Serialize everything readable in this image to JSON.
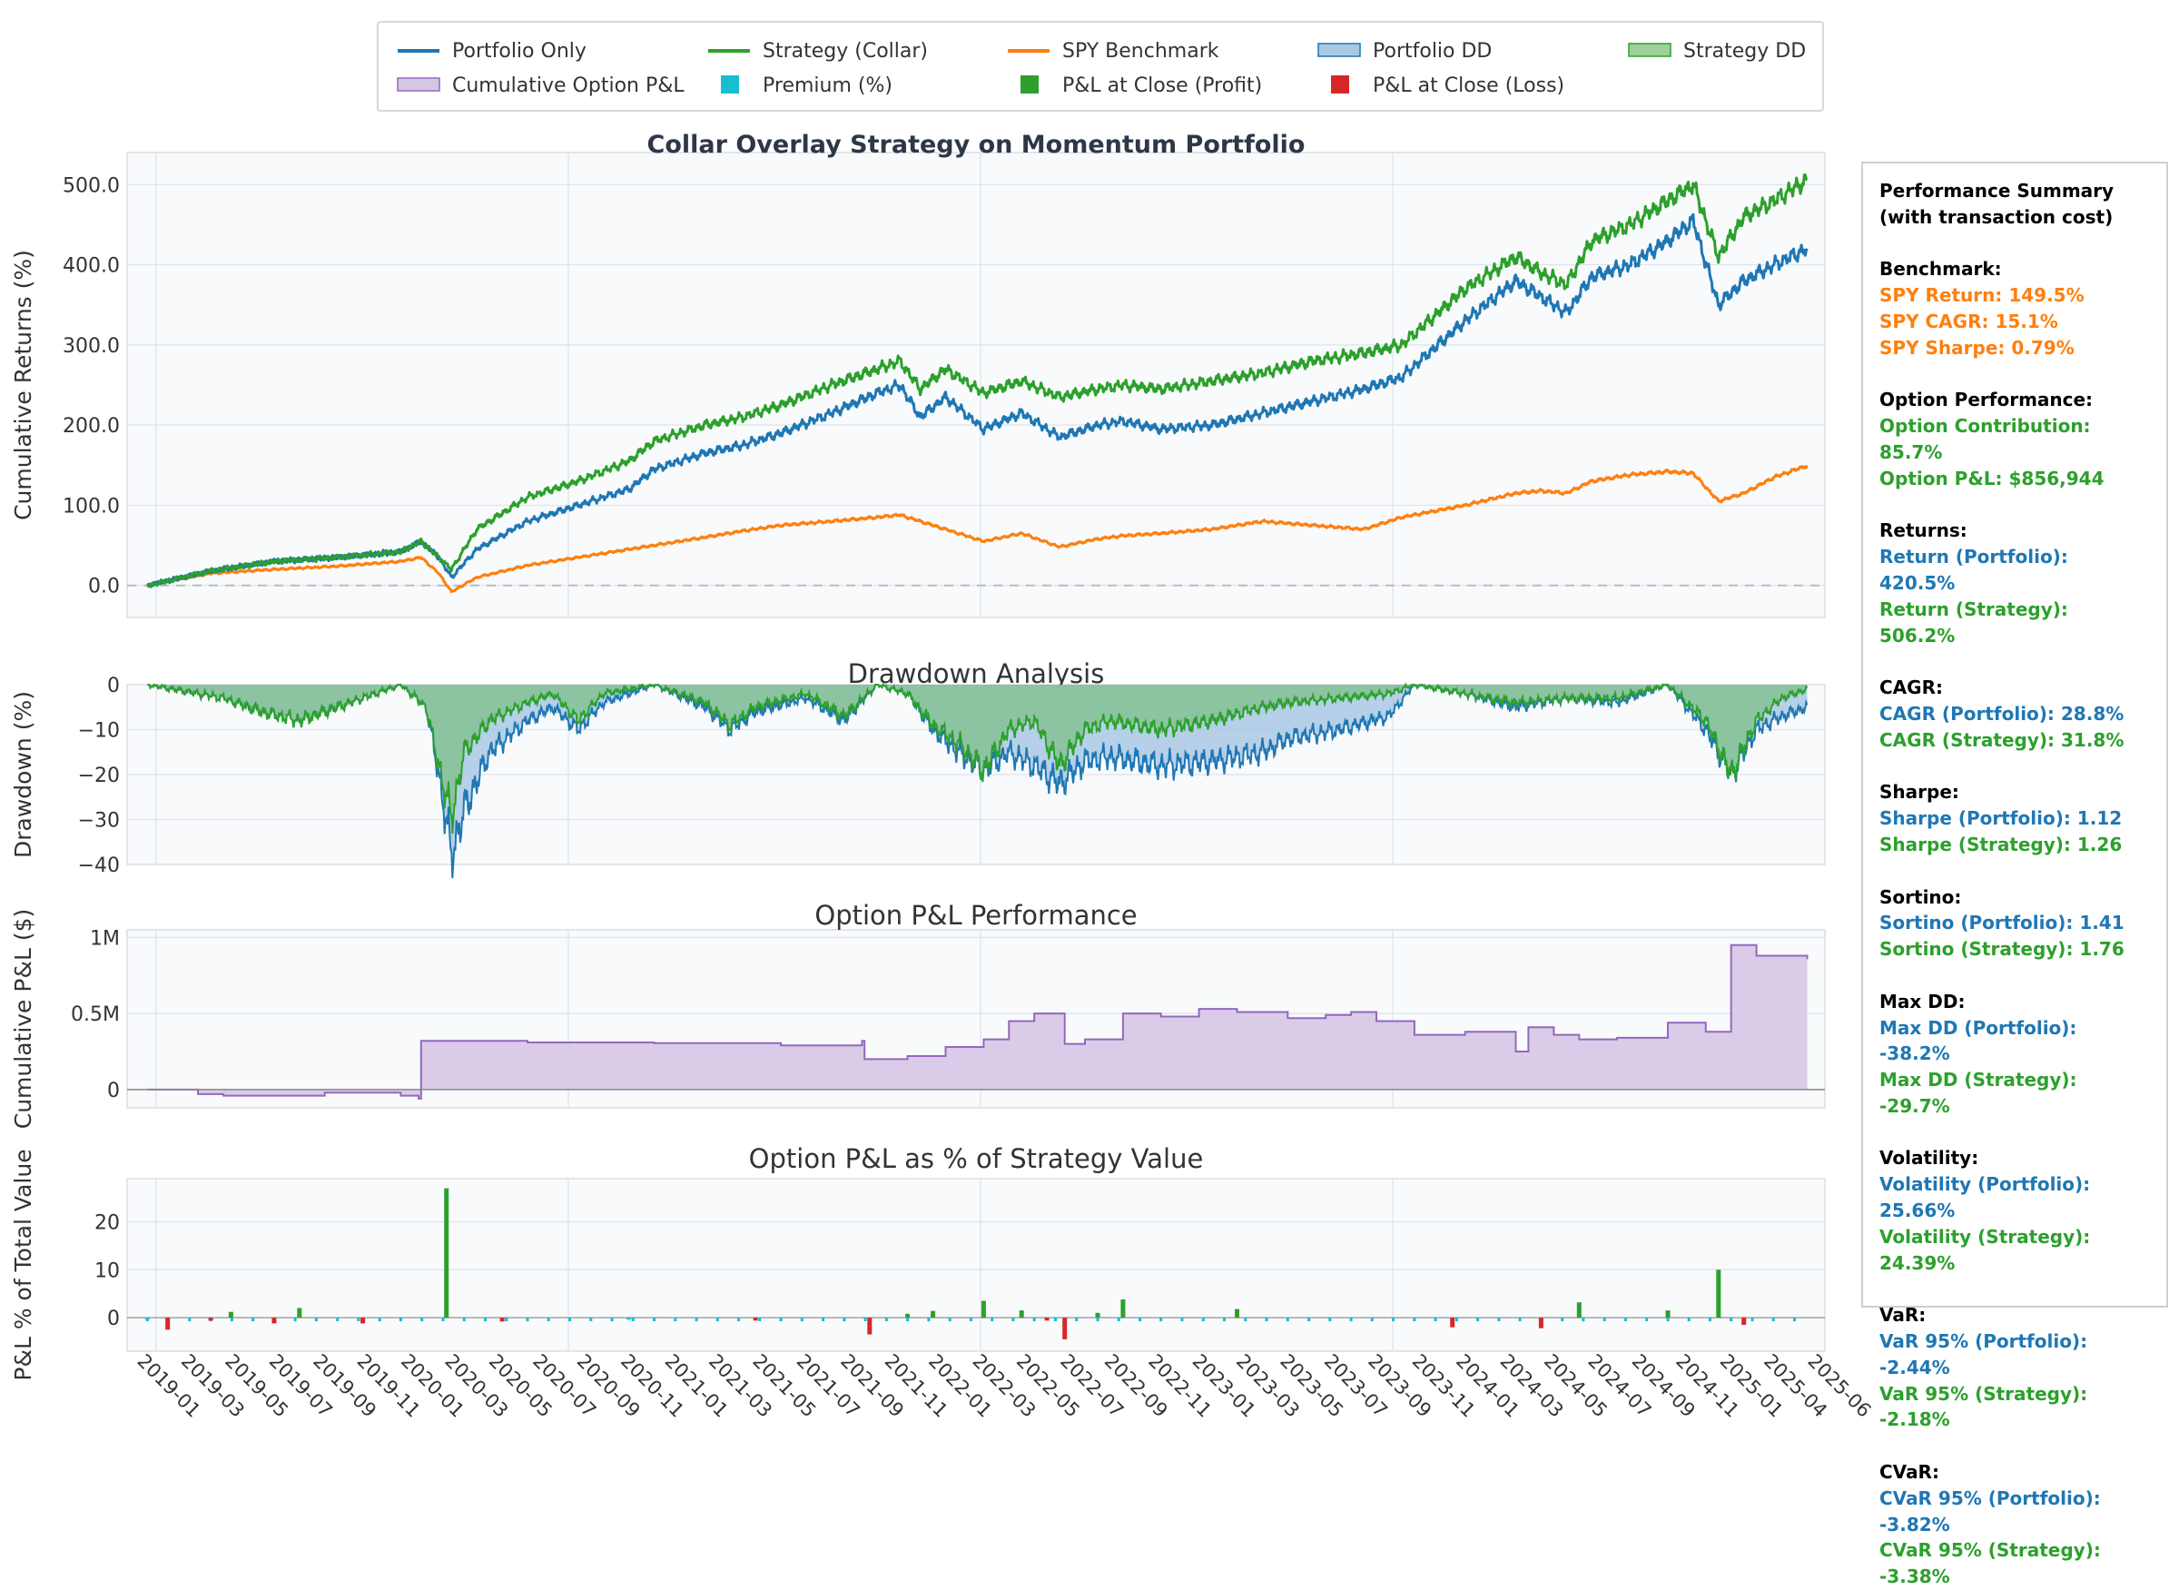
{
  "colors": {
    "portfolio": "#1f77b4",
    "strategy": "#2ca02c",
    "spy": "#ff7f0e",
    "option_pnl": "#9467bd",
    "premium": "#17becf",
    "profit": "#2ca02c",
    "loss": "#d62728",
    "panel_bg": "#f8fafc",
    "grid": "#dde3ea"
  },
  "legend": [
    {
      "label": "Portfolio Only",
      "kind": "line",
      "color": "#1f77b4"
    },
    {
      "label": "Strategy (Collar)",
      "kind": "line",
      "color": "#2ca02c"
    },
    {
      "label": "SPY Benchmark",
      "kind": "line",
      "color": "#ff7f0e"
    },
    {
      "label": "Portfolio DD",
      "kind": "fill",
      "color": "#a9c8e4",
      "edge": "#1f77b4"
    },
    {
      "label": "Strategy DD",
      "kind": "fill",
      "color": "#9ed09a",
      "edge": "#2ca02c"
    },
    {
      "label": "Cumulative Option P&L",
      "kind": "fill",
      "color": "#d6c6e6",
      "edge": "#9467bd"
    },
    {
      "label": "Premium (%)",
      "kind": "square",
      "color": "#17becf"
    },
    {
      "label": "P&L at Close (Profit)",
      "kind": "square",
      "color": "#2ca02c"
    },
    {
      "label": "P&L at Close (Loss)",
      "kind": "square",
      "color": "#d62728"
    }
  ],
  "x_dates": [
    "2019-01",
    "2019-03",
    "2019-05",
    "2019-07",
    "2019-09",
    "2019-11",
    "2020-01",
    "2020-03",
    "2020-05",
    "2020-07",
    "2020-09",
    "2020-11",
    "2021-01",
    "2021-03",
    "2021-05",
    "2021-07",
    "2021-09",
    "2021-11",
    "2022-01",
    "2022-03",
    "2022-05",
    "2022-07",
    "2022-09",
    "2022-11",
    "2023-01",
    "2023-03",
    "2023-05",
    "2023-07",
    "2023-09",
    "2023-11",
    "2024-01",
    "2024-03",
    "2024-05",
    "2024-07",
    "2024-09",
    "2024-11",
    "2025-01",
    "2025-04",
    "2025-06"
  ],
  "chart_data": [
    {
      "type": "line",
      "title": "Collar Overlay Strategy on Momentum Portfolio",
      "xlabel": "",
      "ylabel": "Cumulative Returns (%)",
      "ylim": [
        -40,
        540
      ],
      "yticks": [
        "0.0",
        "100.0",
        "200.0",
        "300.0",
        "400.0",
        "500.0"
      ],
      "time_range": [
        "2018-12",
        "2025-07"
      ],
      "series": [
        {
          "name": "Portfolio Only",
          "color": "#1f77b4",
          "t": [
            2019.0,
            2019.25,
            2019.5,
            2019.75,
            2020.0,
            2020.08,
            2020.15,
            2020.2,
            2020.3,
            2020.5,
            2020.7,
            2020.9,
            2021.0,
            2021.2,
            2021.35,
            2021.5,
            2021.7,
            2021.88,
            2021.97,
            2022.05,
            2022.15,
            2022.3,
            2022.45,
            2022.6,
            2022.75,
            2022.85,
            2023.0,
            2023.2,
            2023.4,
            2023.6,
            2023.8,
            2023.95,
            2024.2,
            2024.4,
            2024.5,
            2024.6,
            2024.7,
            2024.85,
            2025.0,
            2025.1,
            2025.2,
            2025.3,
            2025.42,
            2025.55
          ],
          "v": [
            0,
            18,
            30,
            35,
            42,
            55,
            35,
            10,
            45,
            80,
            100,
            120,
            145,
            165,
            175,
            190,
            215,
            240,
            250,
            210,
            235,
            195,
            215,
            185,
            200,
            205,
            195,
            200,
            215,
            230,
            245,
            260,
            330,
            380,
            360,
            340,
            385,
            400,
            430,
            455,
            350,
            380,
            400,
            420
          ]
        },
        {
          "name": "Strategy (Collar)",
          "color": "#2ca02c",
          "t": [
            2019.0,
            2019.25,
            2019.5,
            2019.75,
            2020.0,
            2020.08,
            2020.15,
            2020.2,
            2020.3,
            2020.5,
            2020.7,
            2020.9,
            2021.0,
            2021.2,
            2021.35,
            2021.5,
            2021.7,
            2021.88,
            2021.97,
            2022.05,
            2022.15,
            2022.3,
            2022.45,
            2022.6,
            2022.75,
            2022.85,
            2023.0,
            2023.2,
            2023.4,
            2023.6,
            2023.8,
            2023.95,
            2024.2,
            2024.4,
            2024.5,
            2024.6,
            2024.7,
            2024.85,
            2025.0,
            2025.1,
            2025.2,
            2025.3,
            2025.42,
            2025.55
          ],
          "v": [
            0,
            18,
            30,
            35,
            42,
            55,
            35,
            20,
            70,
            110,
            130,
            155,
            180,
            200,
            210,
            225,
            250,
            270,
            280,
            245,
            270,
            240,
            255,
            235,
            245,
            250,
            245,
            255,
            265,
            280,
            290,
            300,
            370,
            410,
            390,
            375,
            430,
            450,
            480,
            500,
            410,
            460,
            480,
            506
          ]
        },
        {
          "name": "SPY Benchmark",
          "color": "#ff7f0e",
          "t": [
            2019.0,
            2019.25,
            2019.5,
            2019.75,
            2020.0,
            2020.08,
            2020.15,
            2020.2,
            2020.3,
            2020.5,
            2020.7,
            2020.9,
            2021.0,
            2021.2,
            2021.35,
            2021.5,
            2021.7,
            2021.88,
            2021.97,
            2022.05,
            2022.15,
            2022.3,
            2022.45,
            2022.6,
            2022.75,
            2022.85,
            2023.0,
            2023.2,
            2023.4,
            2023.6,
            2023.8,
            2023.95,
            2024.2,
            2024.4,
            2024.5,
            2024.6,
            2024.7,
            2024.85,
            2025.0,
            2025.1,
            2025.2,
            2025.3,
            2025.42,
            2025.55
          ],
          "v": [
            0,
            15,
            20,
            24,
            30,
            35,
            15,
            -8,
            10,
            25,
            35,
            45,
            50,
            60,
            68,
            75,
            80,
            85,
            88,
            80,
            70,
            55,
            65,
            48,
            58,
            62,
            65,
            70,
            80,
            75,
            70,
            85,
            100,
            115,
            118,
            115,
            130,
            138,
            142,
            140,
            105,
            115,
            135,
            149.5
          ]
        }
      ]
    },
    {
      "type": "area",
      "title": "Drawdown Analysis",
      "xlabel": "",
      "ylabel": "Drawdown (%)",
      "ylim": [
        -40,
        0
      ],
      "yticks": [
        "0",
        "−10",
        "−20",
        "−30",
        "−40"
      ],
      "series": [
        {
          "name": "Portfolio DD",
          "color": "#1f77b4",
          "t": [
            2019.0,
            2019.3,
            2019.45,
            2019.6,
            2019.75,
            2020.0,
            2020.1,
            2020.15,
            2020.2,
            2020.25,
            2020.35,
            2020.5,
            2020.6,
            2020.7,
            2020.8,
            2021.0,
            2021.2,
            2021.3,
            2021.4,
            2021.6,
            2021.75,
            2021.88,
            2022.0,
            2022.1,
            2022.2,
            2022.3,
            2022.4,
            2022.5,
            2022.6,
            2022.7,
            2022.8,
            2023.0,
            2023.2,
            2023.4,
            2023.5,
            2023.7,
            2023.9,
            2024.0,
            2024.2,
            2024.4,
            2024.6,
            2024.8,
            2025.0,
            2025.15,
            2025.25,
            2025.35,
            2025.45,
            2025.55
          ],
          "v": [
            0,
            -3,
            -6,
            -8,
            -5,
            0,
            -5,
            -20,
            -38,
            -28,
            -15,
            -8,
            -5,
            -10,
            -4,
            0,
            -5,
            -10,
            -6,
            -3,
            -8,
            0,
            -2,
            -10,
            -15,
            -19,
            -15,
            -18,
            -22,
            -17,
            -16,
            -18,
            -17,
            -15,
            -12,
            -10,
            -7,
            0,
            -2,
            -5,
            -3,
            -4,
            0,
            -10,
            -20,
            -10,
            -7,
            -5
          ]
        },
        {
          "name": "Strategy DD",
          "color": "#2ca02c",
          "t": [
            2019.0,
            2019.3,
            2019.45,
            2019.6,
            2019.75,
            2020.0,
            2020.1,
            2020.15,
            2020.2,
            2020.25,
            2020.35,
            2020.5,
            2020.6,
            2020.7,
            2020.8,
            2021.0,
            2021.2,
            2021.3,
            2021.4,
            2021.6,
            2021.75,
            2021.88,
            2022.0,
            2022.1,
            2022.2,
            2022.3,
            2022.4,
            2022.5,
            2022.6,
            2022.7,
            2022.8,
            2023.0,
            2023.2,
            2023.4,
            2023.5,
            2023.7,
            2023.9,
            2024.0,
            2024.2,
            2024.4,
            2024.6,
            2024.8,
            2025.0,
            2025.15,
            2025.25,
            2025.35,
            2025.45,
            2025.55
          ],
          "v": [
            0,
            -3,
            -6,
            -8,
            -5,
            0,
            -5,
            -18,
            -29.7,
            -15,
            -8,
            -4,
            -2,
            -8,
            -2,
            0,
            -4,
            -9,
            -5,
            -2,
            -7,
            0,
            -2,
            -9,
            -13,
            -19,
            -10,
            -8,
            -18,
            -10,
            -8,
            -10,
            -8,
            -5,
            -4,
            -3,
            -2,
            0,
            -2,
            -4,
            -3,
            -3,
            0,
            -8,
            -20,
            -8,
            -3,
            -1
          ]
        }
      ]
    },
    {
      "type": "area",
      "title": "Option P&L Performance",
      "xlabel": "",
      "ylabel": "Cumulative P&L ($)",
      "ylim": [
        -120000,
        1050000
      ],
      "yticks": [
        "0",
        "0.5M",
        "1M"
      ],
      "series": [
        {
          "name": "Cumulative Option P&L",
          "color": "#9467bd",
          "t": [
            2019.0,
            2019.2,
            2019.3,
            2019.6,
            2019.7,
            2020.0,
            2020.07,
            2020.08,
            2020.5,
            2020.8,
            2021.0,
            2021.5,
            2021.82,
            2021.83,
            2022.0,
            2022.15,
            2022.3,
            2022.4,
            2022.5,
            2022.62,
            2022.7,
            2022.85,
            2023.0,
            2023.15,
            2023.3,
            2023.5,
            2023.65,
            2023.75,
            2023.85,
            2024.0,
            2024.2,
            2024.4,
            2024.45,
            2024.55,
            2024.65,
            2024.8,
            2025.0,
            2025.15,
            2025.2,
            2025.25,
            2025.35,
            2025.55
          ],
          "v": [
            0,
            -30000,
            -40000,
            -40000,
            -20000,
            -40000,
            -60000,
            320000,
            310000,
            310000,
            305000,
            290000,
            320000,
            200000,
            220000,
            280000,
            330000,
            450000,
            500000,
            300000,
            330000,
            500000,
            480000,
            530000,
            510000,
            470000,
            490000,
            510000,
            450000,
            360000,
            380000,
            250000,
            410000,
            360000,
            330000,
            340000,
            440000,
            380000,
            380000,
            950000,
            880000,
            856944
          ]
        }
      ]
    },
    {
      "type": "bar",
      "title": "Option P&L as % of Strategy Value",
      "xlabel": "",
      "ylabel": "P&L % of Total Value",
      "ylim": [
        -7,
        29
      ],
      "yticks": [
        "0",
        "10",
        "20"
      ],
      "bars": [
        {
          "t": 2019.0,
          "v": -0.3,
          "kind": "premium"
        },
        {
          "t": 2019.08,
          "v": -2.5,
          "kind": "loss"
        },
        {
          "t": 2019.25,
          "v": -0.6,
          "kind": "loss"
        },
        {
          "t": 2019.33,
          "v": 1.2,
          "kind": "profit"
        },
        {
          "t": 2019.5,
          "v": -1.2,
          "kind": "loss"
        },
        {
          "t": 2019.6,
          "v": 2.0,
          "kind": "profit"
        },
        {
          "t": 2019.85,
          "v": -1.2,
          "kind": "loss"
        },
        {
          "t": 2020.18,
          "v": 27.0,
          "kind": "profit"
        },
        {
          "t": 2020.4,
          "v": -0.8,
          "kind": "loss"
        },
        {
          "t": 2020.9,
          "v": -0.4,
          "kind": "premium"
        },
        {
          "t": 2021.4,
          "v": -0.6,
          "kind": "loss"
        },
        {
          "t": 2021.85,
          "v": -3.5,
          "kind": "loss"
        },
        {
          "t": 2022.0,
          "v": 0.8,
          "kind": "profit"
        },
        {
          "t": 2022.1,
          "v": 1.4,
          "kind": "profit"
        },
        {
          "t": 2022.3,
          "v": 3.5,
          "kind": "profit"
        },
        {
          "t": 2022.45,
          "v": 1.5,
          "kind": "profit"
        },
        {
          "t": 2022.55,
          "v": -0.6,
          "kind": "loss"
        },
        {
          "t": 2022.62,
          "v": -4.5,
          "kind": "loss"
        },
        {
          "t": 2022.75,
          "v": 1.0,
          "kind": "profit"
        },
        {
          "t": 2022.85,
          "v": 3.8,
          "kind": "profit"
        },
        {
          "t": 2023.3,
          "v": 1.8,
          "kind": "profit"
        },
        {
          "t": 2024.15,
          "v": -2.0,
          "kind": "loss"
        },
        {
          "t": 2024.5,
          "v": -2.2,
          "kind": "loss"
        },
        {
          "t": 2024.65,
          "v": 3.2,
          "kind": "profit"
        },
        {
          "t": 2025.0,
          "v": 1.5,
          "kind": "profit"
        },
        {
          "t": 2025.2,
          "v": 10.0,
          "kind": "profit"
        },
        {
          "t": 2025.3,
          "v": -1.5,
          "kind": "loss"
        }
      ]
    }
  ],
  "summary": {
    "title_line1": "Performance Summary",
    "title_line2": "(with transaction cost)",
    "sections": [
      {
        "header": "Benchmark:",
        "items": [
          {
            "text": "SPY Return: 149.5%",
            "color": "#ff7f0e"
          },
          {
            "text": "SPY CAGR: 15.1%",
            "color": "#ff7f0e"
          },
          {
            "text": "SPY Sharpe: 0.79%",
            "color": "#ff7f0e"
          }
        ]
      },
      {
        "header": "Option Performance:",
        "items": [
          {
            "text": "Option Contribution: 85.7%",
            "color": "#2ca02c"
          },
          {
            "text": "Option P&L: $856,944",
            "color": "#2ca02c"
          }
        ]
      },
      {
        "header": "Returns:",
        "items": [
          {
            "text": "Return (Portfolio): 420.5%",
            "color": "#1f77b4"
          },
          {
            "text": "Return (Strategy): 506.2%",
            "color": "#2ca02c"
          }
        ]
      },
      {
        "header": "CAGR:",
        "items": [
          {
            "text": "CAGR (Portfolio): 28.8%",
            "color": "#1f77b4"
          },
          {
            "text": "CAGR (Strategy): 31.8%",
            "color": "#2ca02c"
          }
        ]
      },
      {
        "header": "Sharpe:",
        "items": [
          {
            "text": "Sharpe (Portfolio): 1.12",
            "color": "#1f77b4"
          },
          {
            "text": "Sharpe (Strategy): 1.26",
            "color": "#2ca02c"
          }
        ]
      },
      {
        "header": "Sortino:",
        "items": [
          {
            "text": "Sortino (Portfolio): 1.41",
            "color": "#1f77b4"
          },
          {
            "text": "Sortino (Strategy): 1.76",
            "color": "#2ca02c"
          }
        ]
      },
      {
        "header": "Max DD:",
        "items": [
          {
            "text": "Max DD (Portfolio): -38.2%",
            "color": "#1f77b4"
          },
          {
            "text": "Max DD (Strategy): -29.7%",
            "color": "#2ca02c"
          }
        ]
      },
      {
        "header": "Volatility:",
        "items": [
          {
            "text": "Volatility (Portfolio): 25.66%",
            "color": "#1f77b4"
          },
          {
            "text": "Volatility (Strategy): 24.39%",
            "color": "#2ca02c"
          }
        ]
      },
      {
        "header": "VaR:",
        "items": [
          {
            "text": "VaR 95% (Portfolio): -2.44%",
            "color": "#1f77b4"
          },
          {
            "text": "VaR 95% (Strategy): -2.18%",
            "color": "#2ca02c"
          }
        ]
      },
      {
        "header": "CVaR:",
        "items": [
          {
            "text": "CVaR 95% (Portfolio): -3.82%",
            "color": "#1f77b4"
          },
          {
            "text": "CVaR 95% (Strategy): -3.38%",
            "color": "#2ca02c"
          }
        ]
      }
    ]
  }
}
